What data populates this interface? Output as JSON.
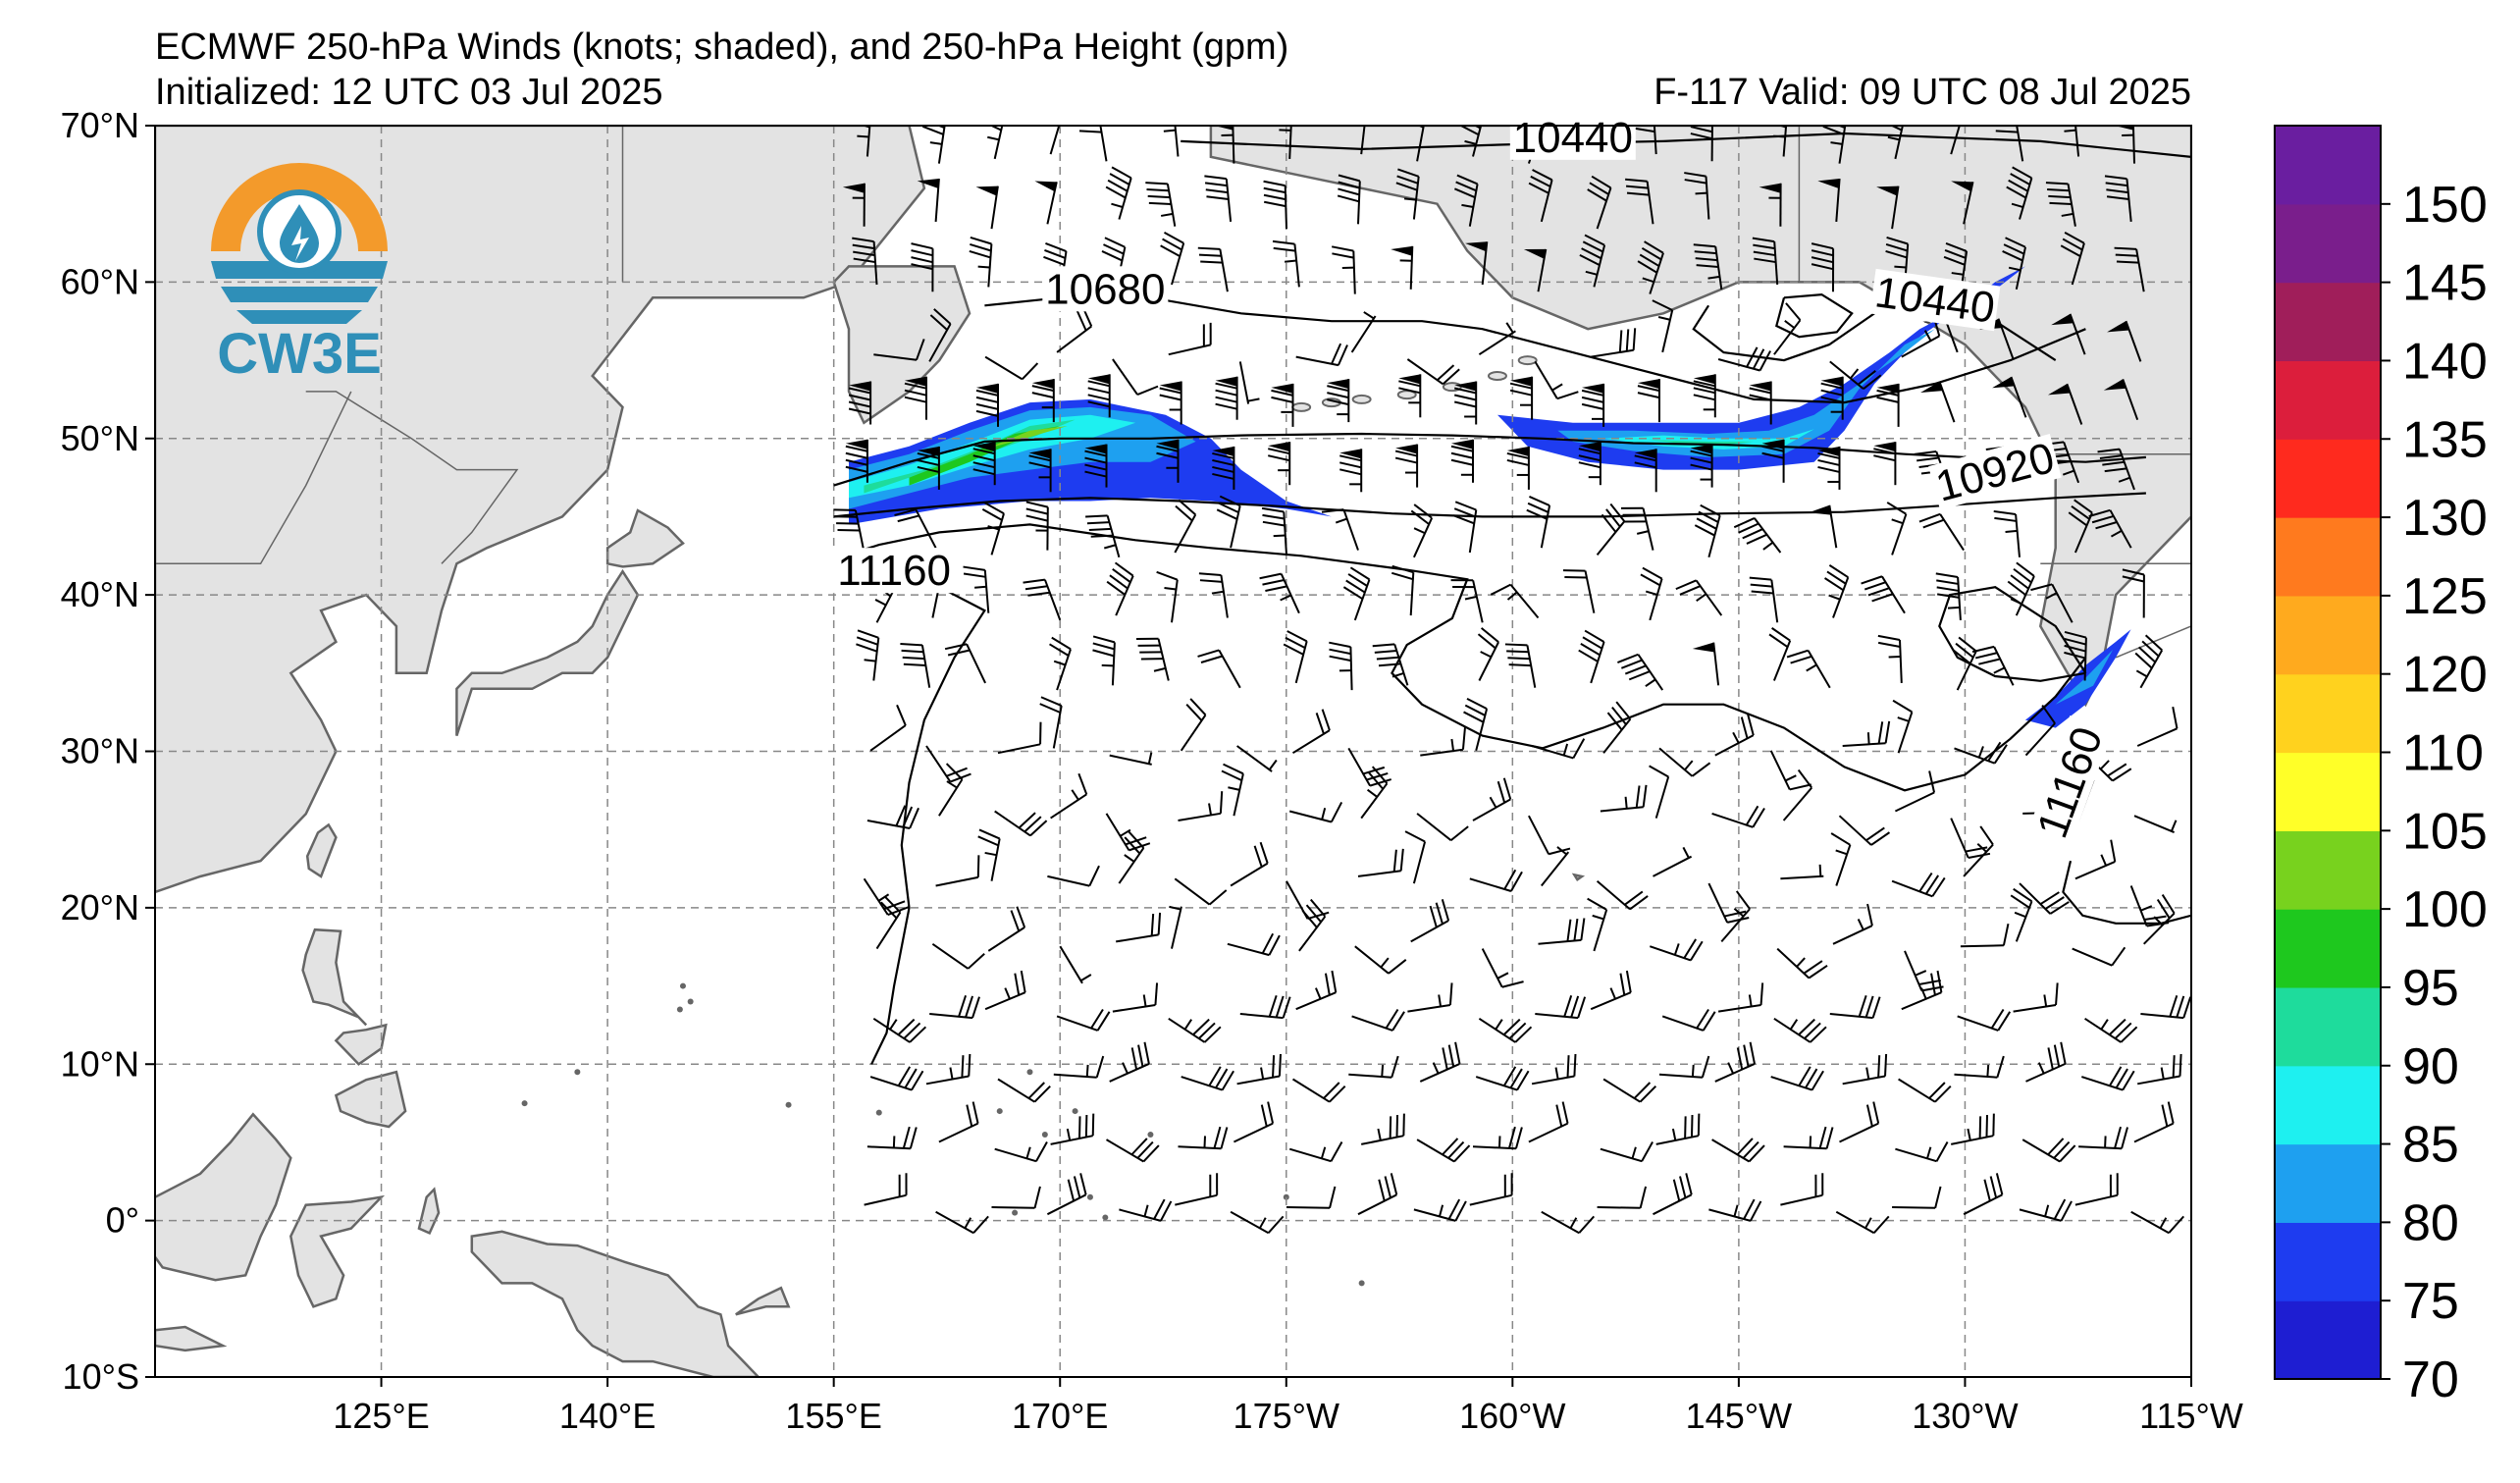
{
  "title": {
    "line1": "ECMWF 250-hPa Winds (knots; shaded), and 250-hPa Height (gpm)",
    "initialized": "Initialized: 12 UTC 03 Jul 2025",
    "valid": "F-117  Valid: 09 UTC 08 Jul 2025"
  },
  "logo": {
    "text": "CW3E",
    "ring_color": "#f39a2b",
    "wave_color": "#2f8fb8",
    "drop_color": "#2f8fb8"
  },
  "map": {
    "lon_range": [
      110,
      245
    ],
    "lat_range": [
      -10,
      70
    ],
    "lat_ticks": [
      {
        "lat": 70,
        "label": "70°N"
      },
      {
        "lat": 60,
        "label": "60°N"
      },
      {
        "lat": 50,
        "label": "50°N"
      },
      {
        "lat": 40,
        "label": "40°N"
      },
      {
        "lat": 30,
        "label": "30°N"
      },
      {
        "lat": 20,
        "label": "20°N"
      },
      {
        "lat": 10,
        "label": "10°N"
      },
      {
        "lat": 0,
        "label": "0°"
      },
      {
        "lat": -10,
        "label": "10°S"
      }
    ],
    "lon_ticks": [
      {
        "lon": 125,
        "label": "125°E"
      },
      {
        "lon": 140,
        "label": "140°E"
      },
      {
        "lon": 155,
        "label": "155°E"
      },
      {
        "lon": 170,
        "label": "170°E"
      },
      {
        "lon": 185,
        "label": "175°W"
      },
      {
        "lon": 200,
        "label": "160°W"
      },
      {
        "lon": 215,
        "label": "145°W"
      },
      {
        "lon": 230,
        "label": "130°W"
      },
      {
        "lon": 245,
        "label": "115°W"
      }
    ],
    "land_color": "#e3e3e3",
    "coast_color": "#666666",
    "grid_color": "#888888"
  },
  "height_contours": [
    {
      "value": 10440,
      "label": "10440",
      "label_positions": [
        [
          204,
          69.2
        ],
        [
          228,
          58.8
        ]
      ]
    },
    {
      "value": 10680,
      "label": "10680",
      "label_positions": [
        [
          173,
          59.5
        ]
      ]
    },
    {
      "value": 10920,
      "label": "10920",
      "label_positions": [
        [
          232,
          47.8
        ]
      ]
    },
    {
      "value": 11160,
      "label": "11160",
      "label_positions": [
        [
          159,
          41.5
        ],
        [
          237,
          28
        ]
      ]
    }
  ],
  "colorbar": {
    "levels": [
      70,
      75,
      80,
      85,
      90,
      95,
      100,
      105,
      110,
      120,
      125,
      130,
      135,
      140,
      145,
      150
    ],
    "labels": [
      "70",
      "75",
      "80",
      "85",
      "90",
      "95",
      "100",
      "105",
      "110",
      "120",
      "125",
      "130",
      "135",
      "140",
      "145",
      "150"
    ],
    "colors": [
      "#1e1ed2",
      "#1e3cf0",
      "#1ea0f0",
      "#1ef0f0",
      "#1edc9c",
      "#1ec81e",
      "#78d21e",
      "#ffff28",
      "#ffd21e",
      "#ffaa1e",
      "#ff7a1e",
      "#ff2a1e",
      "#dc1e3c",
      "#a01e5a",
      "#7a1e8c",
      "#6a1ea0"
    ]
  }
}
